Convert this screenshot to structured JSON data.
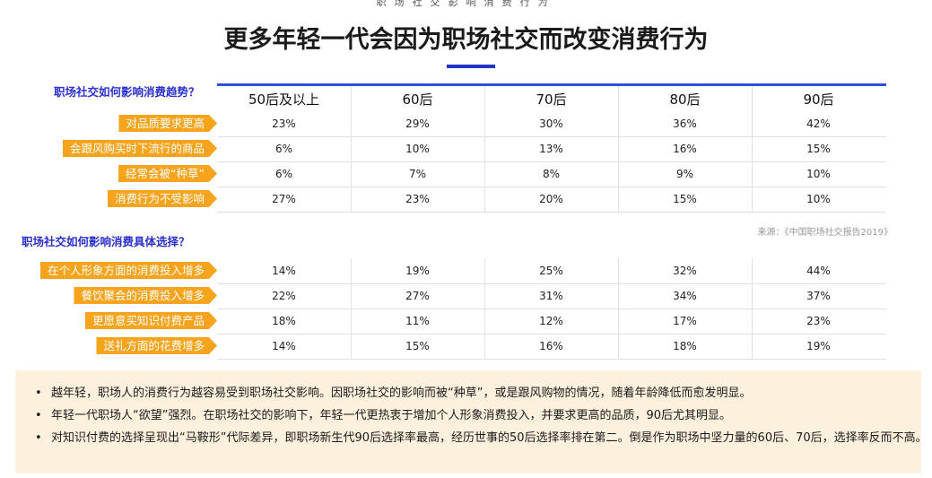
{
  "top_label": "职场社交影响消费行为",
  "title": "更多年轻一代会因为职场社交而改变消费行为",
  "source": "来源：《中国职场社交报告2019》",
  "colors": {
    "accent_blue": "#2b52d8",
    "tag_orange": "#f5a41c",
    "note_bg": "#fdf0dd"
  },
  "chart_data": [
    {
      "type": "table",
      "title": "职场社交如何影响消费趋势？",
      "categories": [
        "50后及以上",
        "60后",
        "70后",
        "80后",
        "90后"
      ],
      "rows": [
        {
          "label": "对品质要求更高",
          "values": [
            "23%",
            "29%",
            "30%",
            "36%",
            "42%"
          ]
        },
        {
          "label": "会跟风购买时下流行的商品",
          "values": [
            "6%",
            "10%",
            "13%",
            "16%",
            "15%"
          ]
        },
        {
          "label": "经常会被“种草”",
          "values": [
            "6%",
            "7%",
            "8%",
            "9%",
            "10%"
          ]
        },
        {
          "label": "消费行为不受影响",
          "values": [
            "27%",
            "23%",
            "20%",
            "15%",
            "10%"
          ]
        }
      ]
    },
    {
      "type": "table",
      "title": "职场社交如何影响消费具体选择？",
      "categories": [
        "50后及以上",
        "60后",
        "70后",
        "80后",
        "90后"
      ],
      "rows": [
        {
          "label": "在个人形象方面的消费投入增多",
          "values": [
            "14%",
            "19%",
            "25%",
            "32%",
            "44%"
          ]
        },
        {
          "label": "餐饮聚会的消费投入增多",
          "values": [
            "22%",
            "27%",
            "31%",
            "34%",
            "37%"
          ]
        },
        {
          "label": "更愿意买知识付费产品",
          "values": [
            "18%",
            "11%",
            "12%",
            "17%",
            "23%"
          ]
        },
        {
          "label": "送礼方面的花费增多",
          "values": [
            "14%",
            "15%",
            "16%",
            "18%",
            "19%"
          ]
        }
      ]
    }
  ],
  "notes": [
    "越年轻，职场人的消费行为越容易受到职场社交影响。因职场社交的影响而被“种草”，或是跟风购物的情况，随着年龄降低而愈发明显。",
    "年轻一代职场人“欲望”强烈。在职场社交的影响下，年轻一代更热衷于增加个人形象消费投入，并要求更高的品质，90后尤其明显。",
    "对知识付费的选择呈现出“马鞍形”代际差异，即职场新生代90后选择率最高，经历世事的50后选择率排在第二。倒是作为职场中坚力量的60后、70后，选择率反而不高。"
  ]
}
